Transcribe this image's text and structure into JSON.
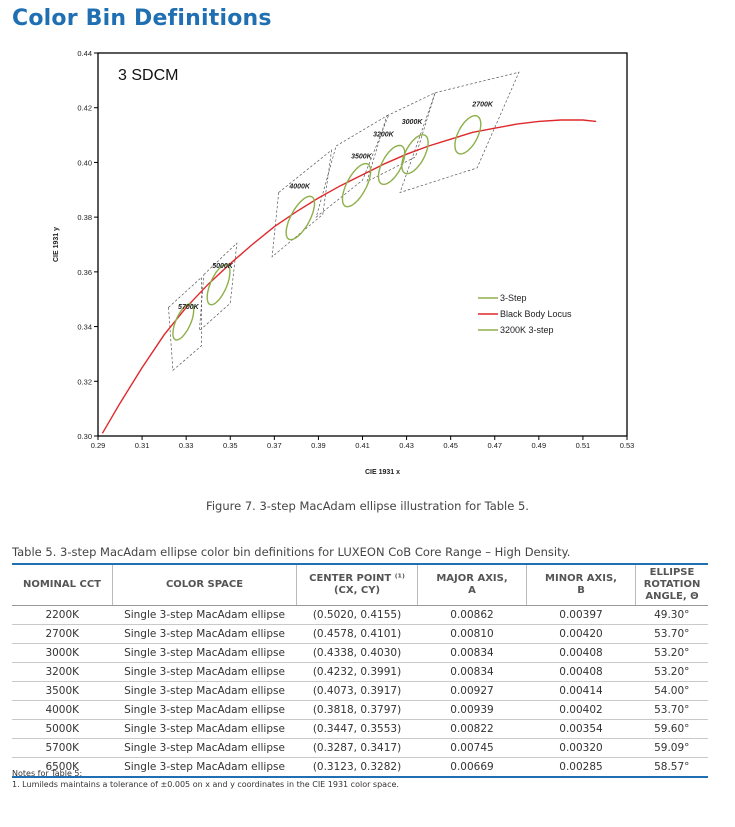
{
  "page": {
    "title": "Color Bin Definitions",
    "figure_caption": "Figure 7. 3-step MacAdam ellipse illustration for Table 5.",
    "table_caption": "Table 5. 3-step MacAdam ellipse color bin definitions for LUXEON CoB Core Range – High Density.",
    "notes_title": "Notes for Table 5:",
    "note_1": "1.  Lumileds maintains a tolerance of ±0.005 on x and y coordinates in the CIE 1931 color space."
  },
  "table": {
    "headers": {
      "nominal_cct": "NOMINAL CCT",
      "color_space": "COLOR SPACE",
      "center_point_line1": "CENTER POINT ⁽¹⁾",
      "center_point_line2": "(cx, cy)",
      "major_axis_line1": "MAJOR AXIS,",
      "major_axis_line2": "a",
      "minor_axis_line1": "MINOR AXIS,",
      "minor_axis_line2": "b",
      "rotation_line1": "ELLIPSE ROTATION",
      "rotation_line2": "ANGLE, θ"
    },
    "rows": [
      {
        "cct": "2200K",
        "space": "Single 3-step MacAdam ellipse",
        "center": "(0.5020, 0.4155)",
        "major": "0.00862",
        "minor": "0.00397",
        "angle": "49.30°"
      },
      {
        "cct": "2700K",
        "space": "Single 3-step MacAdam ellipse",
        "center": "(0.4578, 0.4101)",
        "major": "0.00810",
        "minor": "0.00420",
        "angle": "53.70°"
      },
      {
        "cct": "3000K",
        "space": "Single 3-step MacAdam ellipse",
        "center": "(0.4338, 0.4030)",
        "major": "0.00834",
        "minor": "0.00408",
        "angle": "53.20°"
      },
      {
        "cct": "3200K",
        "space": "Single 3-step MacAdam ellipse",
        "center": "(0.4232, 0.3991)",
        "major": "0.00834",
        "minor": "0.00408",
        "angle": "53.20°"
      },
      {
        "cct": "3500K",
        "space": "Single 3-step MacAdam ellipse",
        "center": "(0.4073, 0.3917)",
        "major": "0.00927",
        "minor": "0.00414",
        "angle": "54.00°"
      },
      {
        "cct": "4000K",
        "space": "Single 3-step MacAdam ellipse",
        "center": "(0.3818, 0.3797)",
        "major": "0.00939",
        "minor": "0.00402",
        "angle": "53.70°"
      },
      {
        "cct": "5000K",
        "space": "Single 3-step MacAdam ellipse",
        "center": "(0.3447, 0.3553)",
        "major": "0.00822",
        "minor": "0.00354",
        "angle": "59.60°"
      },
      {
        "cct": "5700K",
        "space": "Single 3-step MacAdam ellipse",
        "center": "(0.3287, 0.3417)",
        "major": "0.00745",
        "minor": "0.00320",
        "angle": "59.09°"
      },
      {
        "cct": "6500K",
        "space": "Single 3-step MacAdam ellipse",
        "center": "(0.3123, 0.3282)",
        "major": "0.00669",
        "minor": "0.00285",
        "angle": "58.57°"
      }
    ]
  },
  "chart_data": {
    "type": "scatter",
    "annotation": "3 SDCM",
    "xlabel": "CIE 1931 x",
    "ylabel": "CIE 1931 y",
    "xlim": [
      0.29,
      0.53
    ],
    "ylim": [
      0.3,
      0.44
    ],
    "x_ticks": [
      "0.29",
      "0.31",
      "0.33",
      "0.35",
      "0.37",
      "0.39",
      "0.41",
      "0.43",
      "0.45",
      "0.47",
      "0.49",
      "0.51",
      "0.53"
    ],
    "y_ticks": [
      "0.30",
      "0.32",
      "0.34",
      "0.36",
      "0.38",
      "0.40",
      "0.42",
      "0.44"
    ],
    "grid": false,
    "legend_position": "right-middle",
    "legend": [
      {
        "name": "3-Step",
        "color": "#8db04a"
      },
      {
        "name": "Black Body Locus",
        "color": "#e0282a"
      },
      {
        "name": "3200K 3-step",
        "color": "#8db04a"
      }
    ],
    "black_body_locus": [
      [
        0.292,
        0.301
      ],
      [
        0.3,
        0.312
      ],
      [
        0.31,
        0.325
      ],
      [
        0.32,
        0.337
      ],
      [
        0.33,
        0.347
      ],
      [
        0.34,
        0.3555
      ],
      [
        0.35,
        0.363
      ],
      [
        0.36,
        0.37
      ],
      [
        0.37,
        0.3765
      ],
      [
        0.38,
        0.382
      ],
      [
        0.39,
        0.387
      ],
      [
        0.4,
        0.3915
      ],
      [
        0.41,
        0.3955
      ],
      [
        0.42,
        0.3995
      ],
      [
        0.43,
        0.403
      ],
      [
        0.44,
        0.406
      ],
      [
        0.45,
        0.4085
      ],
      [
        0.46,
        0.411
      ],
      [
        0.47,
        0.4125
      ],
      [
        0.48,
        0.414
      ],
      [
        0.49,
        0.415
      ],
      [
        0.5,
        0.4155
      ],
      [
        0.51,
        0.4155
      ],
      [
        0.516,
        0.415
      ]
    ],
    "ellipses": [
      {
        "label": "2700K",
        "cx": 0.4578,
        "cy": 0.4101,
        "a": 0.0081,
        "b": 0.0042,
        "angle": 53.7
      },
      {
        "label": "3000K",
        "cx": 0.4338,
        "cy": 0.403,
        "a": 0.00834,
        "b": 0.00408,
        "angle": 53.2
      },
      {
        "label": "3200K",
        "cx": 0.4232,
        "cy": 0.3991,
        "a": 0.00834,
        "b": 0.00408,
        "angle": 53.2
      },
      {
        "label": "3500K",
        "cx": 0.4073,
        "cy": 0.3917,
        "a": 0.00927,
        "b": 0.00414,
        "angle": 54.0
      },
      {
        "label": "4000K",
        "cx": 0.3818,
        "cy": 0.3797,
        "a": 0.00939,
        "b": 0.00402,
        "angle": 53.7
      },
      {
        "label": "5000K",
        "cx": 0.3447,
        "cy": 0.3553,
        "a": 0.00822,
        "b": 0.00354,
        "angle": 59.6
      },
      {
        "label": "5700K",
        "cx": 0.3287,
        "cy": 0.3417,
        "a": 0.00745,
        "b": 0.0032,
        "angle": 59.09
      }
    ],
    "bin_labels": [
      {
        "text": "5700K",
        "x": 0.331,
        "y": 0.3465
      },
      {
        "text": "5000K",
        "x": 0.3465,
        "y": 0.3615
      },
      {
        "text": "4000K",
        "x": 0.3815,
        "y": 0.3905
      },
      {
        "text": "3500K",
        "x": 0.4095,
        "y": 0.4015
      },
      {
        "text": "3200K",
        "x": 0.4195,
        "y": 0.4095
      },
      {
        "text": "3000K",
        "x": 0.4325,
        "y": 0.414
      },
      {
        "text": "2700K",
        "x": 0.4645,
        "y": 0.4205
      }
    ],
    "bin_quads": [
      [
        [
          0.322,
          0.347
        ],
        [
          0.337,
          0.358
        ],
        [
          0.337,
          0.333
        ],
        [
          0.324,
          0.324
        ]
      ],
      [
        [
          0.338,
          0.359
        ],
        [
          0.353,
          0.3705
        ],
        [
          0.35,
          0.3485
        ],
        [
          0.336,
          0.3385
        ]
      ],
      [
        [
          0.372,
          0.389
        ],
        [
          0.396,
          0.4045
        ],
        [
          0.392,
          0.381
        ],
        [
          0.369,
          0.3655
        ]
      ],
      [
        [
          0.398,
          0.406
        ],
        [
          0.422,
          0.4175
        ],
        [
          0.41,
          0.3935
        ],
        [
          0.389,
          0.38
        ]
      ],
      [
        [
          0.421,
          0.417
        ],
        [
          0.443,
          0.4255
        ],
        [
          0.434,
          0.402
        ],
        [
          0.412,
          0.393
        ]
      ],
      [
        [
          0.443,
          0.4255
        ],
        [
          0.481,
          0.433
        ],
        [
          0.462,
          0.398
        ],
        [
          0.427,
          0.389
        ]
      ]
    ]
  }
}
